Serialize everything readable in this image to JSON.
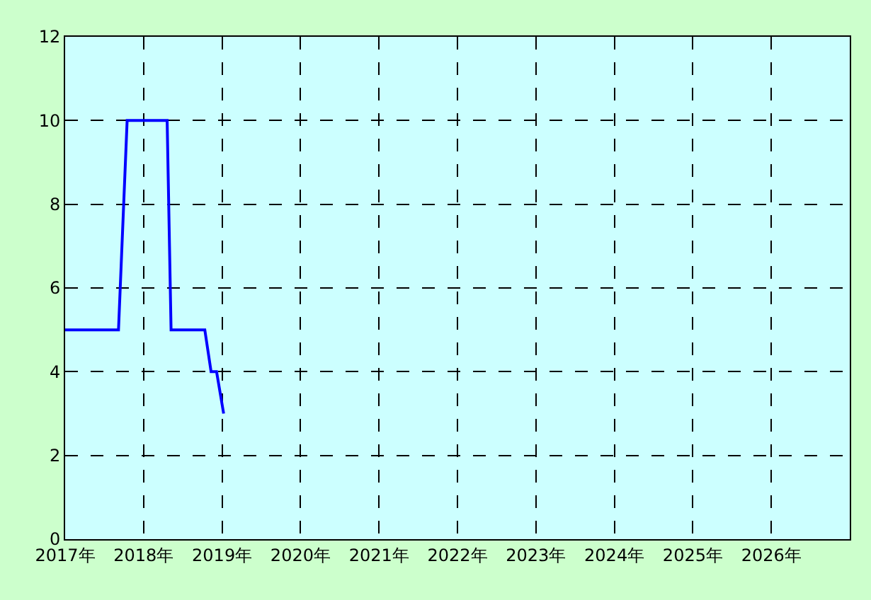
{
  "chart_data": {
    "type": "line",
    "x": [
      2017,
      2017.68,
      2017.79,
      2018.3,
      2018.35,
      2018.78,
      2018.86,
      2018.93,
      2019.02
    ],
    "series": [
      {
        "color": "#0000ff",
        "values": [
          5,
          5,
          10,
          10,
          5,
          5,
          4,
          4,
          3
        ]
      }
    ],
    "xlim": [
      2017,
      2027
    ],
    "xticks": [
      {
        "value": 2017,
        "label": "2017年"
      },
      {
        "value": 2018,
        "label": "2018年"
      },
      {
        "value": 2019,
        "label": "2019年"
      },
      {
        "value": 2020,
        "label": "2020年"
      },
      {
        "value": 2021,
        "label": "2021年"
      },
      {
        "value": 2022,
        "label": "2022年"
      },
      {
        "value": 2023,
        "label": "2023年"
      },
      {
        "value": 2024,
        "label": "2024年"
      },
      {
        "value": 2025,
        "label": "2025年"
      },
      {
        "value": 2026,
        "label": "2026年"
      }
    ],
    "ylim": [
      0,
      12
    ],
    "yticks": [
      0,
      2,
      4,
      6,
      8,
      10,
      12
    ],
    "grid": true,
    "legend": false,
    "marker": "none",
    "line_style": "solid"
  }
}
